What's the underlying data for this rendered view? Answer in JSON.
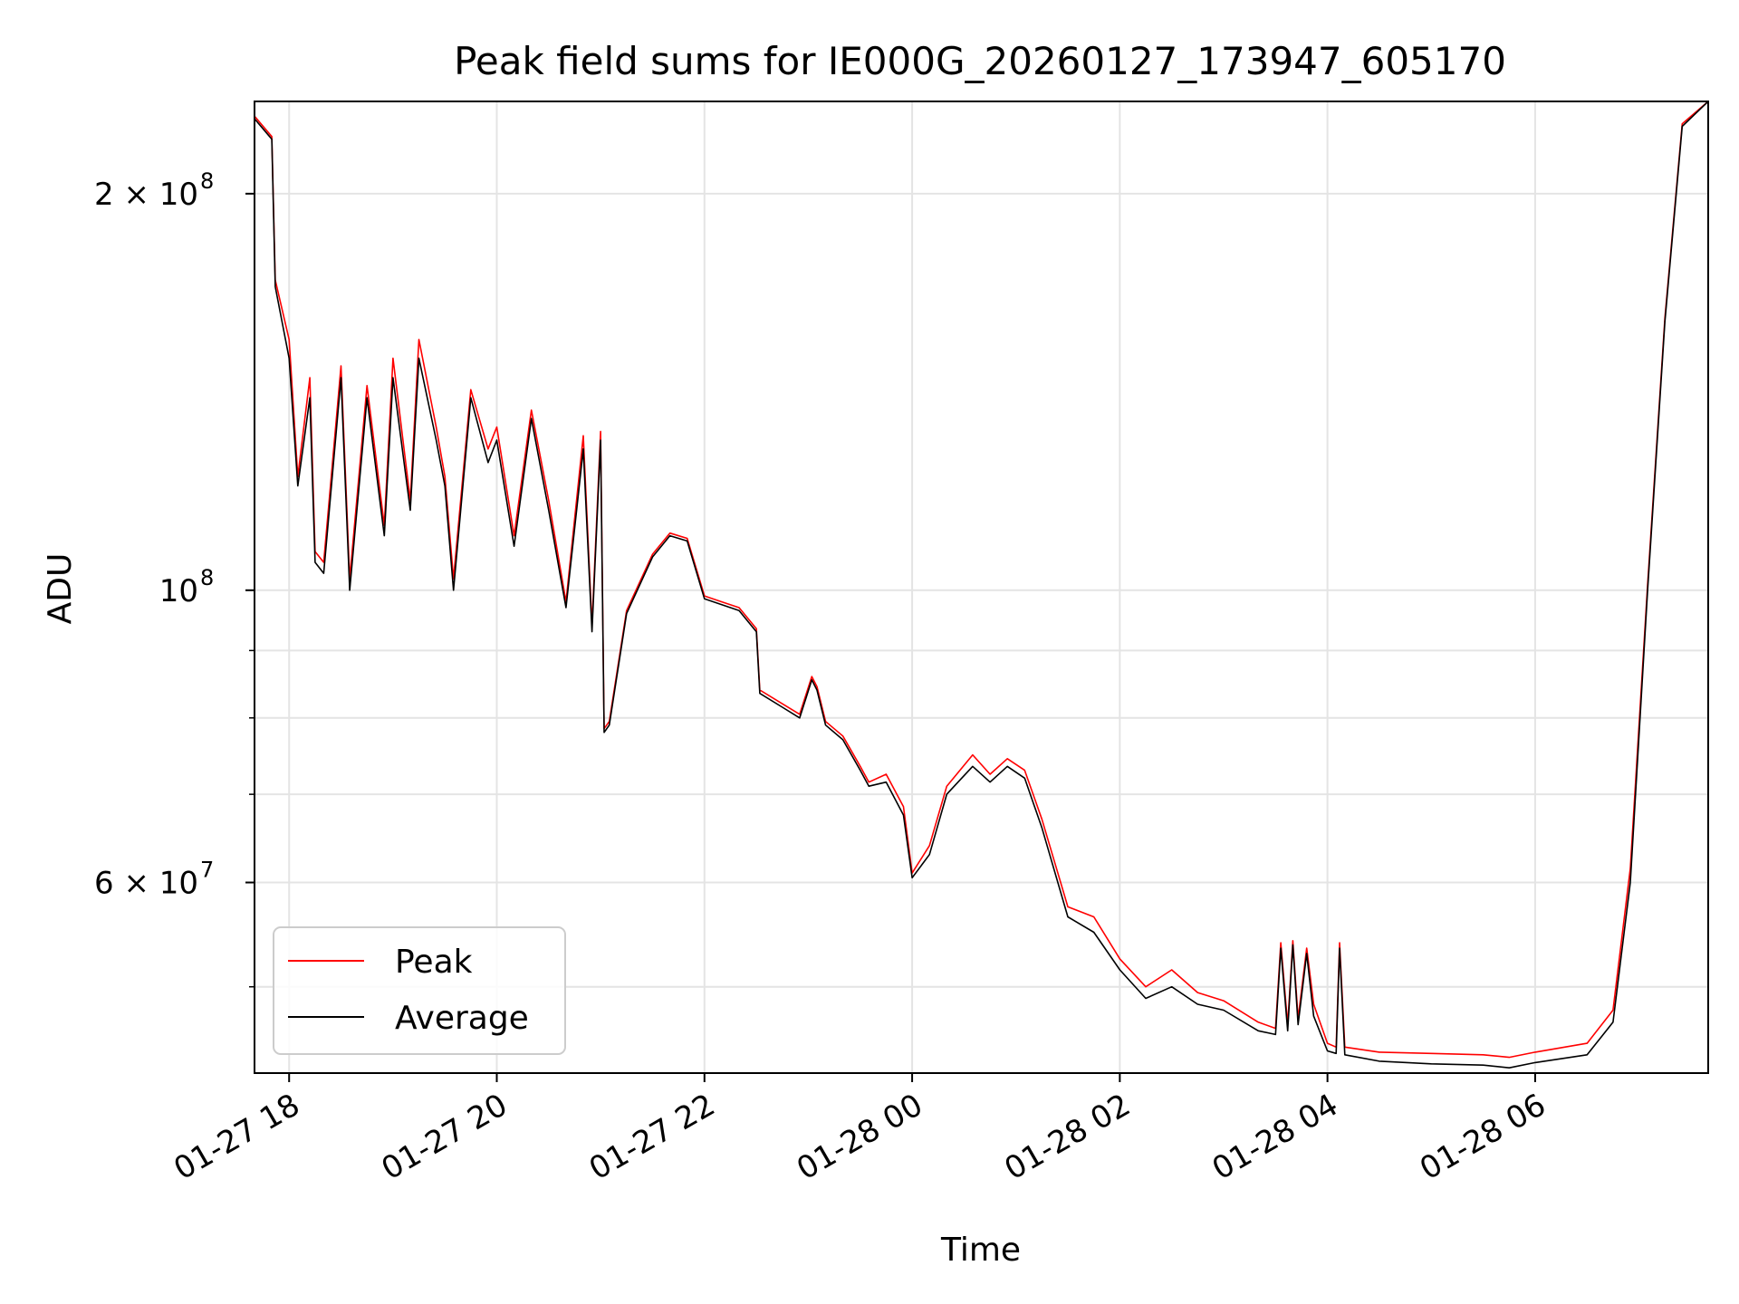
{
  "chart_data": {
    "type": "line",
    "title": "Peak field sums for IE000G_20260127_173947_605170",
    "xlabel": "Time",
    "ylabel": "ADU",
    "y_scale": "log",
    "x_range": [
      "2026-01-27 17:40",
      "2026-01-28 07:40"
    ],
    "ylim": [
      43000000,
      235000000
    ],
    "x_ticks": [
      {
        "t": "2026-01-27 18:00",
        "label": "01-27 18"
      },
      {
        "t": "2026-01-27 20:00",
        "label": "01-27 20"
      },
      {
        "t": "2026-01-27 22:00",
        "label": "01-27 22"
      },
      {
        "t": "2026-01-28 00:00",
        "label": "01-28 00"
      },
      {
        "t": "2026-01-28 02:00",
        "label": "01-28 02"
      },
      {
        "t": "2026-01-28 04:00",
        "label": "01-28 04"
      },
      {
        "t": "2026-01-28 06:00",
        "label": "01-28 06"
      }
    ],
    "y_major_ticks": [
      {
        "v": 60000000,
        "base": "6 × 10",
        "exp": "7"
      },
      {
        "v": 100000000,
        "base": "10",
        "exp": "8"
      },
      {
        "v": 200000000,
        "base": "2 × 10",
        "exp": "8"
      }
    ],
    "y_minor_ticks": [
      50000000,
      70000000,
      80000000,
      90000000
    ],
    "grid": true,
    "legend_position": "lower-left",
    "series": [
      {
        "name": "Average",
        "color": "#000000",
        "points": [
          [
            "2026-01-27 17:40",
            228000000
          ],
          [
            "2026-01-27 17:50",
            220000000
          ],
          [
            "2026-01-27 17:52",
            170000000
          ],
          [
            "2026-01-27 18:00",
            150000000
          ],
          [
            "2026-01-27 18:05",
            120000000
          ],
          [
            "2026-01-27 18:12",
            140000000
          ],
          [
            "2026-01-27 18:15",
            105000000
          ],
          [
            "2026-01-27 18:20",
            103000000
          ],
          [
            "2026-01-27 18:30",
            145000000
          ],
          [
            "2026-01-27 18:35",
            100000000
          ],
          [
            "2026-01-27 18:45",
            140000000
          ],
          [
            "2026-01-27 18:55",
            110000000
          ],
          [
            "2026-01-27 19:00",
            145000000
          ],
          [
            "2026-01-27 19:10",
            115000000
          ],
          [
            "2026-01-27 19:15",
            150000000
          ],
          [
            "2026-01-27 19:25",
            130000000
          ],
          [
            "2026-01-27 19:30",
            120000000
          ],
          [
            "2026-01-27 19:35",
            100000000
          ],
          [
            "2026-01-27 19:45",
            140000000
          ],
          [
            "2026-01-27 19:55",
            125000000
          ],
          [
            "2026-01-27 20:00",
            130000000
          ],
          [
            "2026-01-27 20:10",
            108000000
          ],
          [
            "2026-01-27 20:20",
            135000000
          ],
          [
            "2026-01-27 20:30",
            115000000
          ],
          [
            "2026-01-27 20:40",
            97000000
          ],
          [
            "2026-01-27 20:50",
            128000000
          ],
          [
            "2026-01-27 20:55",
            93000000
          ],
          [
            "2026-01-27 21:00",
            130000000
          ],
          [
            "2026-01-27 21:02",
            78000000
          ],
          [
            "2026-01-27 21:05",
            79000000
          ],
          [
            "2026-01-27 21:15",
            96000000
          ],
          [
            "2026-01-27 21:30",
            106000000
          ],
          [
            "2026-01-27 21:40",
            110000000
          ],
          [
            "2026-01-27 21:50",
            109000000
          ],
          [
            "2026-01-27 22:00",
            98500000
          ],
          [
            "2026-01-27 22:10",
            97500000
          ],
          [
            "2026-01-27 22:20",
            96500000
          ],
          [
            "2026-01-27 22:30",
            93000000
          ],
          [
            "2026-01-27 22:32",
            83500000
          ],
          [
            "2026-01-27 22:45",
            81500000
          ],
          [
            "2026-01-27 22:55",
            80000000
          ],
          [
            "2026-01-27 23:02",
            85500000
          ],
          [
            "2026-01-27 23:05",
            84000000
          ],
          [
            "2026-01-27 23:10",
            79000000
          ],
          [
            "2026-01-27 23:20",
            77000000
          ],
          [
            "2026-01-27 23:30",
            73000000
          ],
          [
            "2026-01-27 23:35",
            71000000
          ],
          [
            "2026-01-27 23:45",
            71500000
          ],
          [
            "2026-01-27 23:55",
            67500000
          ],
          [
            "2026-01-28 00:00",
            60500000
          ],
          [
            "2026-01-28 00:10",
            63000000
          ],
          [
            "2026-01-28 00:20",
            70000000
          ],
          [
            "2026-01-28 00:35",
            73500000
          ],
          [
            "2026-01-28 00:45",
            71500000
          ],
          [
            "2026-01-28 00:55",
            73500000
          ],
          [
            "2026-01-28 01:05",
            72000000
          ],
          [
            "2026-01-28 01:15",
            66000000
          ],
          [
            "2026-01-28 01:30",
            56500000
          ],
          [
            "2026-01-28 01:45",
            55000000
          ],
          [
            "2026-01-28 02:00",
            51500000
          ],
          [
            "2026-01-28 02:15",
            49000000
          ],
          [
            "2026-01-28 02:30",
            50000000
          ],
          [
            "2026-01-28 02:45",
            48500000
          ],
          [
            "2026-01-28 03:00",
            48000000
          ],
          [
            "2026-01-28 03:20",
            46300000
          ],
          [
            "2026-01-28 03:30",
            46000000
          ],
          [
            "2026-01-28 03:33",
            53500000
          ],
          [
            "2026-01-28 03:37",
            46300000
          ],
          [
            "2026-01-28 03:40",
            53800000
          ],
          [
            "2026-01-28 03:43",
            46800000
          ],
          [
            "2026-01-28 03:48",
            53000000
          ],
          [
            "2026-01-28 03:52",
            47500000
          ],
          [
            "2026-01-28 04:00",
            44700000
          ],
          [
            "2026-01-28 04:05",
            44500000
          ],
          [
            "2026-01-28 04:07",
            53500000
          ],
          [
            "2026-01-28 04:10",
            44400000
          ],
          [
            "2026-01-28 04:30",
            43900000
          ],
          [
            "2026-01-28 05:00",
            43700000
          ],
          [
            "2026-01-28 05:30",
            43600000
          ],
          [
            "2026-01-28 05:45",
            43400000
          ],
          [
            "2026-01-28 06:00",
            43800000
          ],
          [
            "2026-01-28 06:30",
            44400000
          ],
          [
            "2026-01-28 06:45",
            47000000
          ],
          [
            "2026-01-28 06:55",
            60000000
          ],
          [
            "2026-01-28 07:05",
            100000000
          ],
          [
            "2026-01-28 07:15",
            160000000
          ],
          [
            "2026-01-28 07:25",
            225000000
          ],
          [
            "2026-01-28 07:40",
            235000000
          ]
        ]
      },
      {
        "name": "Peak",
        "color": "#ff0000",
        "points": [
          [
            "2026-01-27 17:40",
            229000000
          ],
          [
            "2026-01-27 17:50",
            221000000
          ],
          [
            "2026-01-27 17:52",
            172000000
          ],
          [
            "2026-01-27 18:00",
            155000000
          ],
          [
            "2026-01-27 18:05",
            122000000
          ],
          [
            "2026-01-27 18:12",
            145000000
          ],
          [
            "2026-01-27 18:15",
            107000000
          ],
          [
            "2026-01-27 18:20",
            105000000
          ],
          [
            "2026-01-27 18:30",
            148000000
          ],
          [
            "2026-01-27 18:35",
            102000000
          ],
          [
            "2026-01-27 18:45",
            143000000
          ],
          [
            "2026-01-27 18:55",
            112000000
          ],
          [
            "2026-01-27 19:00",
            150000000
          ],
          [
            "2026-01-27 19:10",
            117000000
          ],
          [
            "2026-01-27 19:15",
            155000000
          ],
          [
            "2026-01-27 19:25",
            133000000
          ],
          [
            "2026-01-27 19:30",
            122000000
          ],
          [
            "2026-01-27 19:35",
            102000000
          ],
          [
            "2026-01-27 19:45",
            142000000
          ],
          [
            "2026-01-27 19:55",
            128000000
          ],
          [
            "2026-01-27 20:00",
            133000000
          ],
          [
            "2026-01-27 20:10",
            110000000
          ],
          [
            "2026-01-27 20:20",
            137000000
          ],
          [
            "2026-01-27 20:30",
            117000000
          ],
          [
            "2026-01-27 20:40",
            98000000
          ],
          [
            "2026-01-27 20:50",
            131000000
          ],
          [
            "2026-01-27 20:55",
            94000000
          ],
          [
            "2026-01-27 21:00",
            132000000
          ],
          [
            "2026-01-27 21:02",
            78500000
          ],
          [
            "2026-01-27 21:05",
            79500000
          ],
          [
            "2026-01-27 21:15",
            96500000
          ],
          [
            "2026-01-27 21:30",
            106500000
          ],
          [
            "2026-01-27 21:40",
            110500000
          ],
          [
            "2026-01-27 21:50",
            109500000
          ],
          [
            "2026-01-27 22:00",
            99000000
          ],
          [
            "2026-01-27 22:10",
            98000000
          ],
          [
            "2026-01-27 22:20",
            97000000
          ],
          [
            "2026-01-27 22:30",
            93500000
          ],
          [
            "2026-01-27 22:32",
            84000000
          ],
          [
            "2026-01-27 22:45",
            82000000
          ],
          [
            "2026-01-27 22:55",
            80500000
          ],
          [
            "2026-01-27 23:02",
            86000000
          ],
          [
            "2026-01-27 23:05",
            84500000
          ],
          [
            "2026-01-27 23:10",
            79500000
          ],
          [
            "2026-01-27 23:20",
            77500000
          ],
          [
            "2026-01-27 23:30",
            73500000
          ],
          [
            "2026-01-27 23:35",
            71500000
          ],
          [
            "2026-01-27 23:45",
            72500000
          ],
          [
            "2026-01-27 23:55",
            68500000
          ],
          [
            "2026-01-28 00:00",
            61000000
          ],
          [
            "2026-01-28 00:10",
            64000000
          ],
          [
            "2026-01-28 00:20",
            71000000
          ],
          [
            "2026-01-28 00:35",
            75000000
          ],
          [
            "2026-01-28 00:45",
            72500000
          ],
          [
            "2026-01-28 00:55",
            74500000
          ],
          [
            "2026-01-28 01:05",
            73000000
          ],
          [
            "2026-01-28 01:15",
            67000000
          ],
          [
            "2026-01-28 01:30",
            57500000
          ],
          [
            "2026-01-28 01:45",
            56500000
          ],
          [
            "2026-01-28 02:00",
            52500000
          ],
          [
            "2026-01-28 02:15",
            50000000
          ],
          [
            "2026-01-28 02:30",
            51500000
          ],
          [
            "2026-01-28 02:45",
            49500000
          ],
          [
            "2026-01-28 03:00",
            48800000
          ],
          [
            "2026-01-28 03:20",
            47000000
          ],
          [
            "2026-01-28 03:30",
            46500000
          ],
          [
            "2026-01-28 03:33",
            54000000
          ],
          [
            "2026-01-28 03:37",
            46800000
          ],
          [
            "2026-01-28 03:40",
            54200000
          ],
          [
            "2026-01-28 03:43",
            47300000
          ],
          [
            "2026-01-28 03:48",
            53500000
          ],
          [
            "2026-01-28 03:52",
            48500000
          ],
          [
            "2026-01-28 04:00",
            45300000
          ],
          [
            "2026-01-28 04:05",
            45000000
          ],
          [
            "2026-01-28 04:07",
            54000000
          ],
          [
            "2026-01-28 04:10",
            45000000
          ],
          [
            "2026-01-28 04:30",
            44600000
          ],
          [
            "2026-01-28 05:00",
            44500000
          ],
          [
            "2026-01-28 05:30",
            44400000
          ],
          [
            "2026-01-28 05:45",
            44200000
          ],
          [
            "2026-01-28 06:00",
            44600000
          ],
          [
            "2026-01-28 06:30",
            45300000
          ],
          [
            "2026-01-28 06:45",
            48000000
          ],
          [
            "2026-01-28 06:55",
            61500000
          ],
          [
            "2026-01-28 07:05",
            101000000
          ],
          [
            "2026-01-28 07:15",
            161000000
          ],
          [
            "2026-01-28 07:25",
            226000000
          ],
          [
            "2026-01-28 07:40",
            235000000
          ]
        ]
      }
    ]
  }
}
